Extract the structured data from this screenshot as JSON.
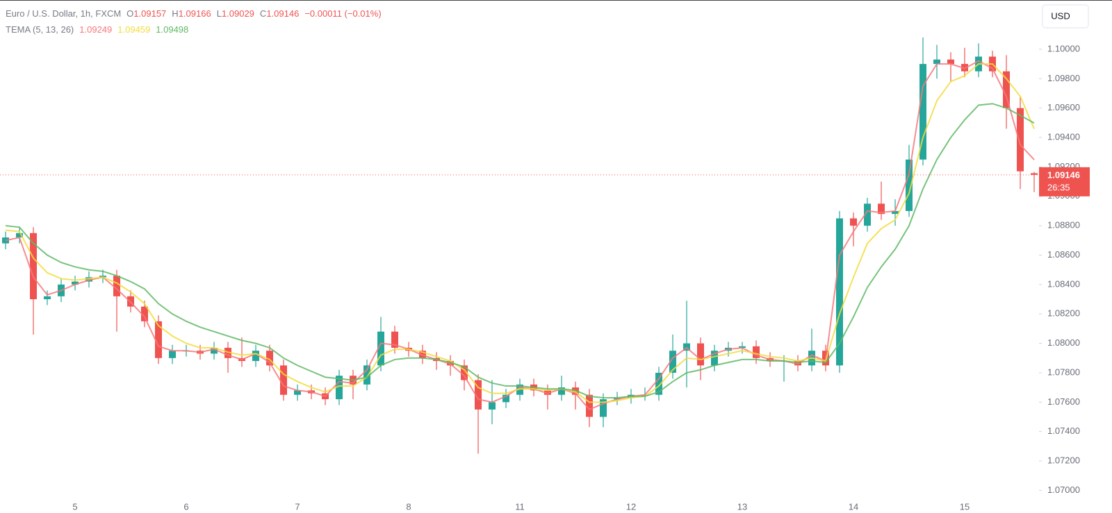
{
  "chart_data": {
    "type": "candlestick",
    "title": "Euro / U.S. Dollar, 1h, FXCM",
    "ohlc_letters": [
      "O",
      "H",
      "L",
      "C"
    ],
    "change": "−0.00011 (−0.01%)",
    "indicator": "TEMA (5, 13, 26)",
    "currency": "USD",
    "countdown": "26:35",
    "categories": [
      null,
      null,
      null,
      null,
      null,
      "5",
      null,
      null,
      null,
      null,
      null,
      null,
      null,
      "6",
      null,
      null,
      null,
      null,
      null,
      null,
      null,
      "7",
      null,
      null,
      null,
      null,
      null,
      null,
      null,
      "8",
      null,
      null,
      null,
      null,
      null,
      null,
      null,
      "11",
      null,
      null,
      null,
      null,
      null,
      null,
      null,
      "12",
      null,
      null,
      null,
      null,
      null,
      null,
      null,
      "13",
      null,
      null,
      null,
      null,
      null,
      null,
      null,
      "14",
      null,
      null,
      null,
      null,
      null,
      null,
      null,
      "15",
      null,
      null,
      null,
      null,
      null
    ],
    "candles": {
      "up_color": "#26a69a",
      "down_color": "#ef5350",
      "open": [
        1.0868,
        1.0872,
        1.0875,
        1.083,
        1.0832,
        1.084,
        1.0842,
        1.0845,
        1.0846,
        1.0832,
        1.0825,
        1.0815,
        1.079,
        1.0795,
        1.0795,
        1.0793,
        1.0797,
        1.079,
        1.0788,
        1.0795,
        1.0785,
        1.0765,
        1.0768,
        1.0766,
        1.0762,
        1.0778,
        1.0772,
        1.0785,
        1.0808,
        1.0797,
        1.0795,
        1.079,
        1.0788,
        1.0785,
        1.0775,
        1.0755,
        1.076,
        1.0765,
        1.0772,
        1.0768,
        1.0765,
        1.077,
        1.0765,
        1.075,
        1.0762,
        1.0763,
        1.0765,
        1.0765,
        1.078,
        1.0795,
        1.08,
        1.0785,
        1.0795,
        1.0797,
        1.0798,
        1.079,
        1.0788,
        1.0788,
        1.0785,
        1.0795,
        1.0785,
        1.0885,
        1.088,
        1.0895,
        1.0888,
        1.089,
        1.0925,
        1.099,
        1.0993,
        1.099,
        1.0985,
        1.0995,
        1.0985,
        1.096,
        1.09157
      ],
      "high": [
        1.0876,
        1.0879,
        1.0879,
        1.0836,
        1.0844,
        1.0846,
        1.0849,
        1.085,
        1.085,
        1.0836,
        1.0829,
        1.0819,
        1.0799,
        1.0799,
        1.0799,
        1.0801,
        1.0801,
        1.0804,
        1.0799,
        1.0799,
        1.0789,
        1.0772,
        1.0772,
        1.077,
        1.0782,
        1.0782,
        1.0789,
        1.0818,
        1.0812,
        1.0801,
        1.0799,
        1.0794,
        1.0792,
        1.0789,
        1.0779,
        1.0775,
        1.0769,
        1.0776,
        1.0776,
        1.0772,
        1.0778,
        1.0774,
        1.0769,
        1.0766,
        1.0767,
        1.0769,
        1.077,
        1.0784,
        1.0806,
        1.0829,
        1.0804,
        1.0799,
        1.0801,
        1.0801,
        1.0802,
        1.0794,
        1.0792,
        1.0792,
        1.081,
        1.0799,
        1.089,
        1.0889,
        1.0899,
        1.091,
        1.0898,
        1.0935,
        1.1008,
        1.1003,
        1.0998,
        1.1001,
        1.1004,
        1.0999,
        1.0996,
        1.0968,
        1.09166
      ],
      "low": [
        1.0864,
        1.0868,
        1.0806,
        1.0826,
        1.0828,
        1.0836,
        1.0838,
        1.0841,
        1.0808,
        1.0821,
        1.0811,
        1.0786,
        1.0786,
        1.0791,
        1.0789,
        1.0789,
        1.078,
        1.0784,
        1.0784,
        1.0781,
        1.0761,
        1.0761,
        1.0762,
        1.0758,
        1.0758,
        1.0762,
        1.0768,
        1.0781,
        1.0793,
        1.0791,
        1.0786,
        1.0782,
        1.0778,
        1.0768,
        1.0725,
        1.0745,
        1.0756,
        1.0761,
        1.0764,
        1.0755,
        1.0761,
        1.0755,
        1.0743,
        1.0743,
        1.0758,
        1.0759,
        1.0761,
        1.0761,
        1.0776,
        1.077,
        1.0775,
        1.0781,
        1.0791,
        1.0793,
        1.0786,
        1.0784,
        1.0774,
        1.0781,
        1.0781,
        1.0781,
        1.078,
        1.0866,
        1.0876,
        1.0884,
        1.088,
        1.0886,
        1.0921,
        1.098,
        1.0978,
        1.0981,
        1.0981,
        1.0981,
        1.0946,
        1.0905,
        1.09029
      ],
      "close": [
        1.0872,
        1.0875,
        1.083,
        1.0832,
        1.084,
        1.0842,
        1.0845,
        1.0846,
        1.0832,
        1.0825,
        1.0815,
        1.079,
        1.0795,
        1.0795,
        1.0793,
        1.0797,
        1.079,
        1.0788,
        1.0795,
        1.0785,
        1.0765,
        1.0768,
        1.0766,
        1.0762,
        1.0778,
        1.0772,
        1.0785,
        1.0808,
        1.0797,
        1.0795,
        1.079,
        1.0788,
        1.0785,
        1.0775,
        1.0755,
        1.076,
        1.0765,
        1.0772,
        1.0768,
        1.0765,
        1.077,
        1.0765,
        1.075,
        1.0762,
        1.0763,
        1.0765,
        1.0765,
        1.078,
        1.0795,
        1.08,
        1.0785,
        1.0795,
        1.0797,
        1.0798,
        1.079,
        1.0788,
        1.0788,
        1.0785,
        1.0795,
        1.0785,
        1.0885,
        1.088,
        1.0895,
        1.0888,
        1.089,
        1.0925,
        1.099,
        1.0993,
        1.099,
        1.0985,
        1.0995,
        1.0985,
        1.096,
        1.0917,
        1.09146
      ]
    },
    "series": [
      {
        "color": "#f7777a",
        "values": [
          1.087,
          1.0872,
          1.0845,
          1.0833,
          1.0836,
          1.084,
          1.0843,
          1.0845,
          1.0837,
          1.0828,
          1.0818,
          1.0798,
          1.0795,
          1.0795,
          1.0794,
          1.0796,
          1.0792,
          1.0789,
          1.0793,
          1.0787,
          1.0771,
          1.0768,
          1.0767,
          1.0764,
          1.0774,
          1.0773,
          1.0782,
          1.08,
          1.0799,
          1.0796,
          1.0792,
          1.0789,
          1.0786,
          1.0778,
          1.0762,
          1.076,
          1.0764,
          1.077,
          1.0769,
          1.0766,
          1.0769,
          1.0766,
          1.0755,
          1.0759,
          1.0762,
          1.0764,
          1.0765,
          1.0776,
          1.079,
          1.0797,
          1.0789,
          1.0793,
          1.0796,
          1.0797,
          1.0792,
          1.0789,
          1.0788,
          1.0786,
          1.0792,
          1.0788,
          1.086,
          1.0876,
          1.089,
          1.0889,
          1.089,
          1.0915,
          1.0975,
          1.099,
          1.099,
          1.0987,
          1.0992,
          1.0987,
          1.0968,
          1.0935,
          1.09249
        ]
      },
      {
        "color": "#f2dc3c",
        "values": [
          1.0877,
          1.0876,
          1.0858,
          1.0848,
          1.0844,
          1.0843,
          1.0844,
          1.0845,
          1.0841,
          1.0835,
          1.0827,
          1.0812,
          1.0805,
          1.08,
          1.0797,
          1.0797,
          1.0794,
          1.0792,
          1.0793,
          1.0789,
          1.0779,
          1.0774,
          1.077,
          1.0767,
          1.0771,
          1.0771,
          1.0777,
          1.0792,
          1.0796,
          1.0796,
          1.0794,
          1.0791,
          1.0788,
          1.0782,
          1.077,
          1.0766,
          1.0766,
          1.0769,
          1.0769,
          1.0768,
          1.0769,
          1.0767,
          1.076,
          1.076,
          1.0761,
          1.0763,
          1.0764,
          1.0771,
          1.0782,
          1.079,
          1.0789,
          1.0791,
          1.0793,
          1.0795,
          1.0793,
          1.0791,
          1.079,
          1.0788,
          1.079,
          1.0788,
          1.082,
          1.0845,
          1.0868,
          1.0878,
          1.0884,
          1.0902,
          1.094,
          1.0965,
          1.0978,
          1.0982,
          1.099,
          1.099,
          1.098,
          1.0968,
          1.09459
        ]
      },
      {
        "color": "#5fb865",
        "values": [
          1.088,
          1.0879,
          1.0868,
          1.086,
          1.0855,
          1.0852,
          1.085,
          1.0849,
          1.0846,
          1.0842,
          1.0837,
          1.0827,
          1.082,
          1.0815,
          1.0811,
          1.0808,
          1.0805,
          1.0802,
          1.08,
          1.0797,
          1.079,
          1.0785,
          1.0781,
          1.0777,
          1.0776,
          1.0775,
          1.0777,
          1.0785,
          1.0789,
          1.079,
          1.079,
          1.0789,
          1.0787,
          1.0784,
          1.0777,
          1.0773,
          1.0771,
          1.0771,
          1.077,
          1.0769,
          1.0769,
          1.0768,
          1.0764,
          1.0763,
          1.0763,
          1.0764,
          1.0764,
          1.0767,
          1.0774,
          1.078,
          1.0782,
          1.0785,
          1.0787,
          1.0789,
          1.0789,
          1.0788,
          1.0788,
          1.0787,
          1.0788,
          1.0787,
          1.08,
          1.0818,
          1.0838,
          1.0852,
          1.0864,
          1.088,
          1.0905,
          1.0925,
          1.094,
          1.0952,
          1.0962,
          1.0963,
          1.096,
          1.0955,
          1.09498
        ]
      }
    ],
    "ylim": [
      1.06936,
      1.10335
    ],
    "yticks": [
      {
        "value": 1.07,
        "label": "1.07000"
      },
      {
        "value": 1.072,
        "label": "1.07200"
      },
      {
        "value": 1.074,
        "label": "1.07400"
      },
      {
        "value": 1.076,
        "label": "1.07600"
      },
      {
        "value": 1.078,
        "label": "1.07800"
      },
      {
        "value": 1.08,
        "label": "1.08000"
      },
      {
        "value": 1.082,
        "label": "1.08200"
      },
      {
        "value": 1.084,
        "label": "1.08400"
      },
      {
        "value": 1.086,
        "label": "1.08600"
      },
      {
        "value": 1.088,
        "label": "1.08800"
      },
      {
        "value": 1.09,
        "label": "1.09000"
      },
      {
        "value": 1.092,
        "label": "1.09200"
      },
      {
        "value": 1.094,
        "label": "1.09400"
      },
      {
        "value": 1.096,
        "label": "1.09600"
      },
      {
        "value": 1.098,
        "label": "1.09800"
      },
      {
        "value": 1.1,
        "label": "1.10000"
      }
    ]
  }
}
